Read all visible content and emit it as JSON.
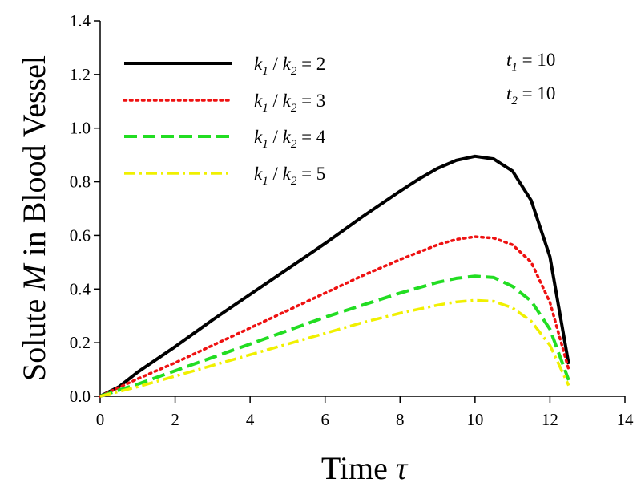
{
  "chart_data": {
    "type": "line",
    "title": "",
    "xlabel": "Time",
    "xlabel_symbol": "τ",
    "ylabel_prefix": "Solute ",
    "ylabel_symbol": "M",
    "ylabel_suffix": " in Blood Vessel",
    "xlim": [
      0,
      14
    ],
    "ylim": [
      0,
      1.4
    ],
    "xticks": [
      0,
      2,
      4,
      6,
      8,
      10,
      12,
      14
    ],
    "yticks": [
      0.0,
      0.2,
      0.4,
      0.6,
      0.8,
      1.0,
      1.2,
      1.4
    ],
    "ytick_labels": [
      "0.0",
      "0.2",
      "0.4",
      "0.6",
      "0.8",
      "1.0",
      "1.2",
      "1.4"
    ],
    "grid": false,
    "legend_position": "top-left",
    "parameters": [
      {
        "var": "t",
        "sub": "1",
        "text": " = 10"
      },
      {
        "var": "t",
        "sub": "2",
        "text": " = 10"
      }
    ],
    "series": [
      {
        "name": "k1 / k2 = 2",
        "legend": {
          "k": "k",
          "s1": "1",
          "mid": " / ",
          "s2": "2",
          "eq": " = 2"
        },
        "color": "#000000",
        "dash": "solid",
        "x": [
          0,
          0.5,
          1,
          2,
          3,
          4,
          5,
          6,
          7,
          8,
          8.5,
          9,
          9.5,
          10,
          10.5,
          11,
          11.5,
          12,
          12.5
        ],
        "y": [
          0,
          0.035,
          0.09,
          0.185,
          0.285,
          0.38,
          0.475,
          0.57,
          0.67,
          0.765,
          0.81,
          0.85,
          0.88,
          0.895,
          0.885,
          0.84,
          0.73,
          0.52,
          0.12
        ]
      },
      {
        "name": "k1 / k2 = 3",
        "legend": {
          "k": "k",
          "s1": "1",
          "mid": " / ",
          "s2": "2",
          "eq": " = 3"
        },
        "color": "#ee1111",
        "dash": "dot",
        "x": [
          0,
          1,
          2,
          3,
          4,
          5,
          6,
          7,
          8,
          9,
          9.5,
          10,
          10.5,
          11,
          11.5,
          12,
          12.5
        ],
        "y": [
          0,
          0.065,
          0.125,
          0.19,
          0.255,
          0.32,
          0.385,
          0.45,
          0.51,
          0.565,
          0.585,
          0.595,
          0.59,
          0.565,
          0.5,
          0.35,
          0.1
        ]
      },
      {
        "name": "k1 / k2 = 4",
        "legend": {
          "k": "k",
          "s1": "1",
          "mid": " / ",
          "s2": "2",
          "eq": " = 4"
        },
        "color": "#22dd22",
        "dash": "dash",
        "x": [
          0,
          1,
          2,
          3,
          4,
          5,
          6,
          7,
          8,
          9,
          9.5,
          10,
          10.5,
          11,
          11.5,
          12,
          12.5
        ],
        "y": [
          0,
          0.045,
          0.095,
          0.145,
          0.195,
          0.245,
          0.295,
          0.34,
          0.385,
          0.425,
          0.44,
          0.448,
          0.443,
          0.41,
          0.355,
          0.25,
          0.06
        ]
      },
      {
        "name": "k1 / k2 = 5",
        "legend": {
          "k": "k",
          "s1": "1",
          "mid": " / ",
          "s2": "2",
          "eq": " = 5"
        },
        "color": "#f0f000",
        "dash": "dashdot",
        "x": [
          0,
          1,
          2,
          3,
          4,
          5,
          6,
          7,
          8,
          9,
          9.5,
          10,
          10.5,
          11,
          11.5,
          12,
          12.5
        ],
        "y": [
          0,
          0.035,
          0.075,
          0.115,
          0.155,
          0.195,
          0.235,
          0.275,
          0.31,
          0.34,
          0.352,
          0.358,
          0.354,
          0.33,
          0.28,
          0.19,
          0.04
        ]
      }
    ]
  }
}
